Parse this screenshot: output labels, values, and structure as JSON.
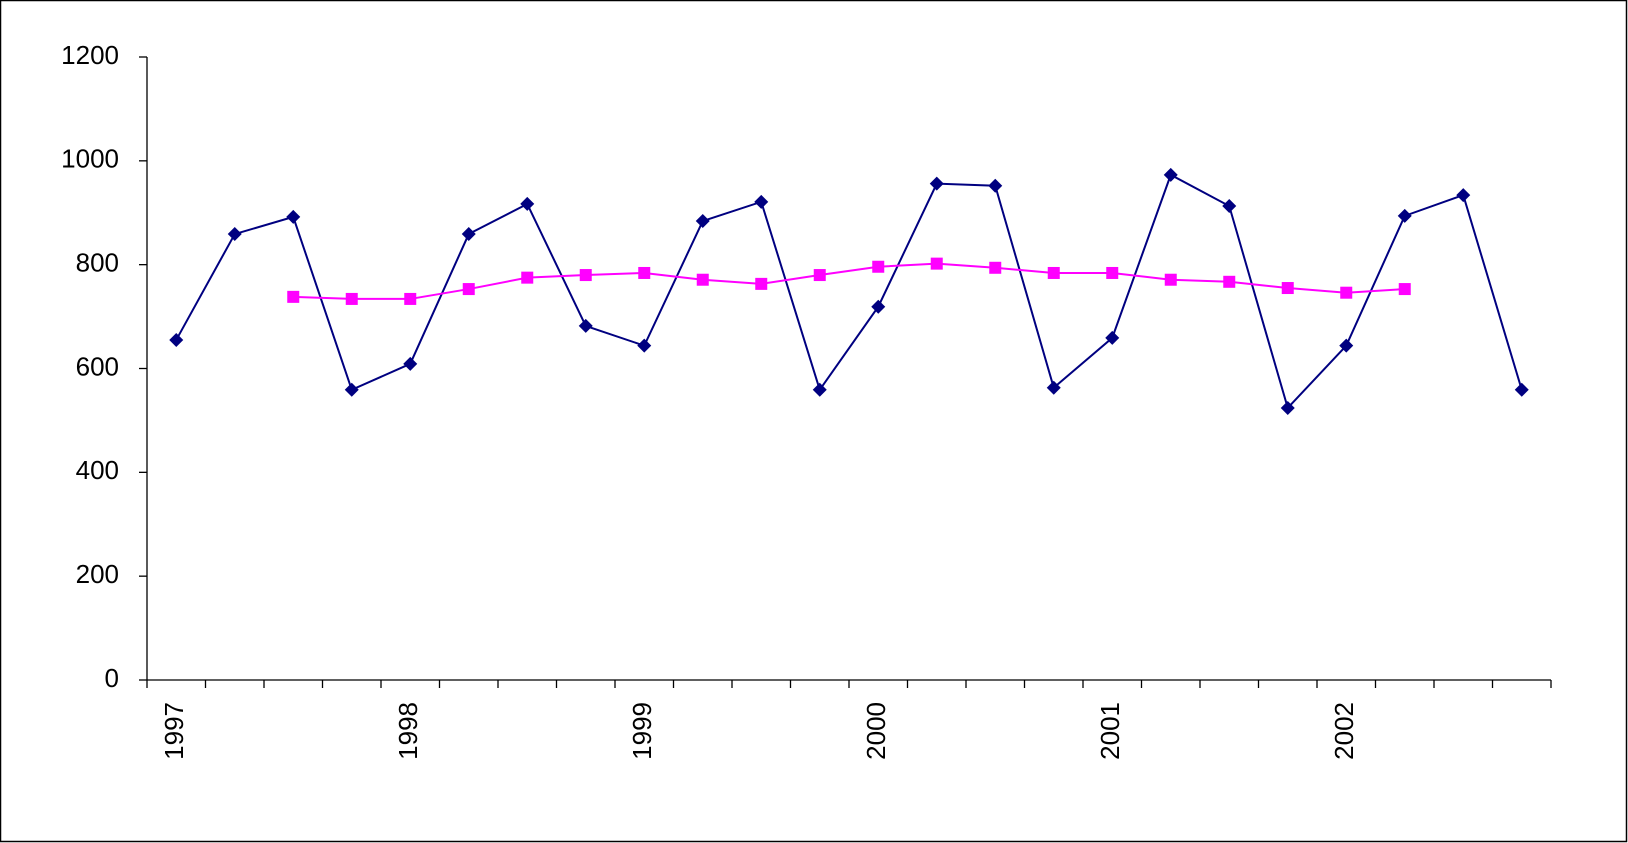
{
  "chart_data": {
    "type": "line",
    "categories": [
      "1997",
      null,
      null,
      null,
      "1998",
      null,
      null,
      null,
      "1999",
      null,
      null,
      null,
      "2000",
      null,
      null,
      null,
      "2001",
      null,
      null,
      null,
      "2002",
      null,
      null,
      null
    ],
    "series": [
      {
        "color": "#000080",
        "marker": "diamond",
        "values": [
          655,
          859,
          892,
          559,
          609,
          859,
          917,
          682,
          644,
          884,
          921,
          559,
          719,
          956,
          952,
          563,
          659,
          973,
          913,
          524,
          644,
          894,
          934,
          559
        ]
      },
      {
        "color": "#ff00ff",
        "marker": "square",
        "values": [
          null,
          null,
          738,
          734,
          734,
          753,
          775,
          780,
          784,
          771,
          763,
          780,
          796,
          802,
          794,
          784,
          784,
          771,
          767,
          755,
          746,
          753,
          null,
          null
        ]
      }
    ],
    "ylim": [
      0,
      1200
    ],
    "yticks": [
      0,
      200,
      400,
      600,
      800,
      1000,
      1200
    ],
    "grid": false
  }
}
